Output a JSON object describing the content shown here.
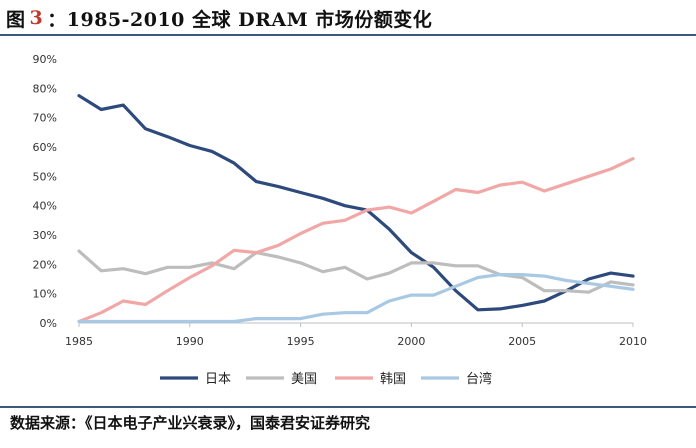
{
  "header": {
    "fig_label": "图",
    "fig_number": "3",
    "title_text": "：1985-2010 全球 DRAM 市场份额变化"
  },
  "footer": {
    "source": "数据来源：《日本电子产业兴衰录》，国泰君安证券研究"
  },
  "chart_data": {
    "type": "line",
    "title": "1985-2010 全球 DRAM 市场份额变化",
    "xlabel": "",
    "ylabel": "",
    "x": [
      1985,
      1986,
      1987,
      1988,
      1989,
      1990,
      1991,
      1992,
      1993,
      1994,
      1995,
      1996,
      1997,
      1998,
      1999,
      2000,
      2001,
      2002,
      2003,
      2004,
      2005,
      2006,
      2007,
      2008,
      2009,
      2010
    ],
    "xticks": [
      1985,
      1990,
      1995,
      2000,
      2005,
      2010
    ],
    "xtick_labels": [
      "1985",
      "1990",
      "1995",
      "2000",
      "2005",
      "2010"
    ],
    "ylim": [
      0,
      90
    ],
    "yticks": [
      0,
      10,
      20,
      30,
      40,
      50,
      60,
      70,
      80,
      90
    ],
    "ytick_labels": [
      "0%",
      "10%",
      "20%",
      "30%",
      "40%",
      "50%",
      "60%",
      "70%",
      "80%",
      "90%"
    ],
    "grid": false,
    "legend_position": "bottom",
    "series": [
      {
        "name": "日本",
        "color": "#2e4a7d",
        "values": [
          77.5,
          72.8,
          74.3,
          66.2,
          63.5,
          60.5,
          58.5,
          54.5,
          48.2,
          46.5,
          44.5,
          42.5,
          40.0,
          38.5,
          32.0,
          24.0,
          19.0,
          11.0,
          4.5,
          4.8,
          6.0,
          7.5,
          11.0,
          15.0,
          17.0,
          16.0
        ]
      },
      {
        "name": "美国",
        "color": "#bdbdbd",
        "values": [
          24.5,
          17.8,
          18.5,
          16.8,
          19.0,
          19.0,
          20.5,
          18.5,
          24.0,
          22.5,
          20.5,
          17.5,
          19.0,
          15.0,
          17.0,
          20.5,
          20.5,
          19.5,
          19.5,
          16.5,
          15.5,
          11.0,
          11.0,
          10.5,
          14.0,
          13.0
        ]
      },
      {
        "name": "韩国",
        "color": "#f2a7a7",
        "values": [
          0.5,
          3.5,
          7.5,
          6.3,
          11.0,
          15.5,
          19.5,
          24.8,
          24.0,
          26.5,
          30.5,
          34.0,
          35.0,
          38.5,
          39.5,
          37.5,
          41.5,
          45.5,
          44.5,
          47.0,
          48.0,
          45.0,
          47.5,
          50.0,
          52.5,
          56.0
        ]
      },
      {
        "name": "台湾",
        "color": "#a8c8e4",
        "values": [
          0.5,
          0.5,
          0.5,
          0.5,
          0.5,
          0.5,
          0.5,
          0.5,
          1.5,
          1.5,
          1.5,
          3.0,
          3.5,
          3.5,
          7.5,
          9.5,
          9.5,
          12.5,
          15.5,
          16.5,
          16.5,
          16.0,
          14.5,
          13.5,
          12.5,
          11.5
        ]
      }
    ]
  }
}
